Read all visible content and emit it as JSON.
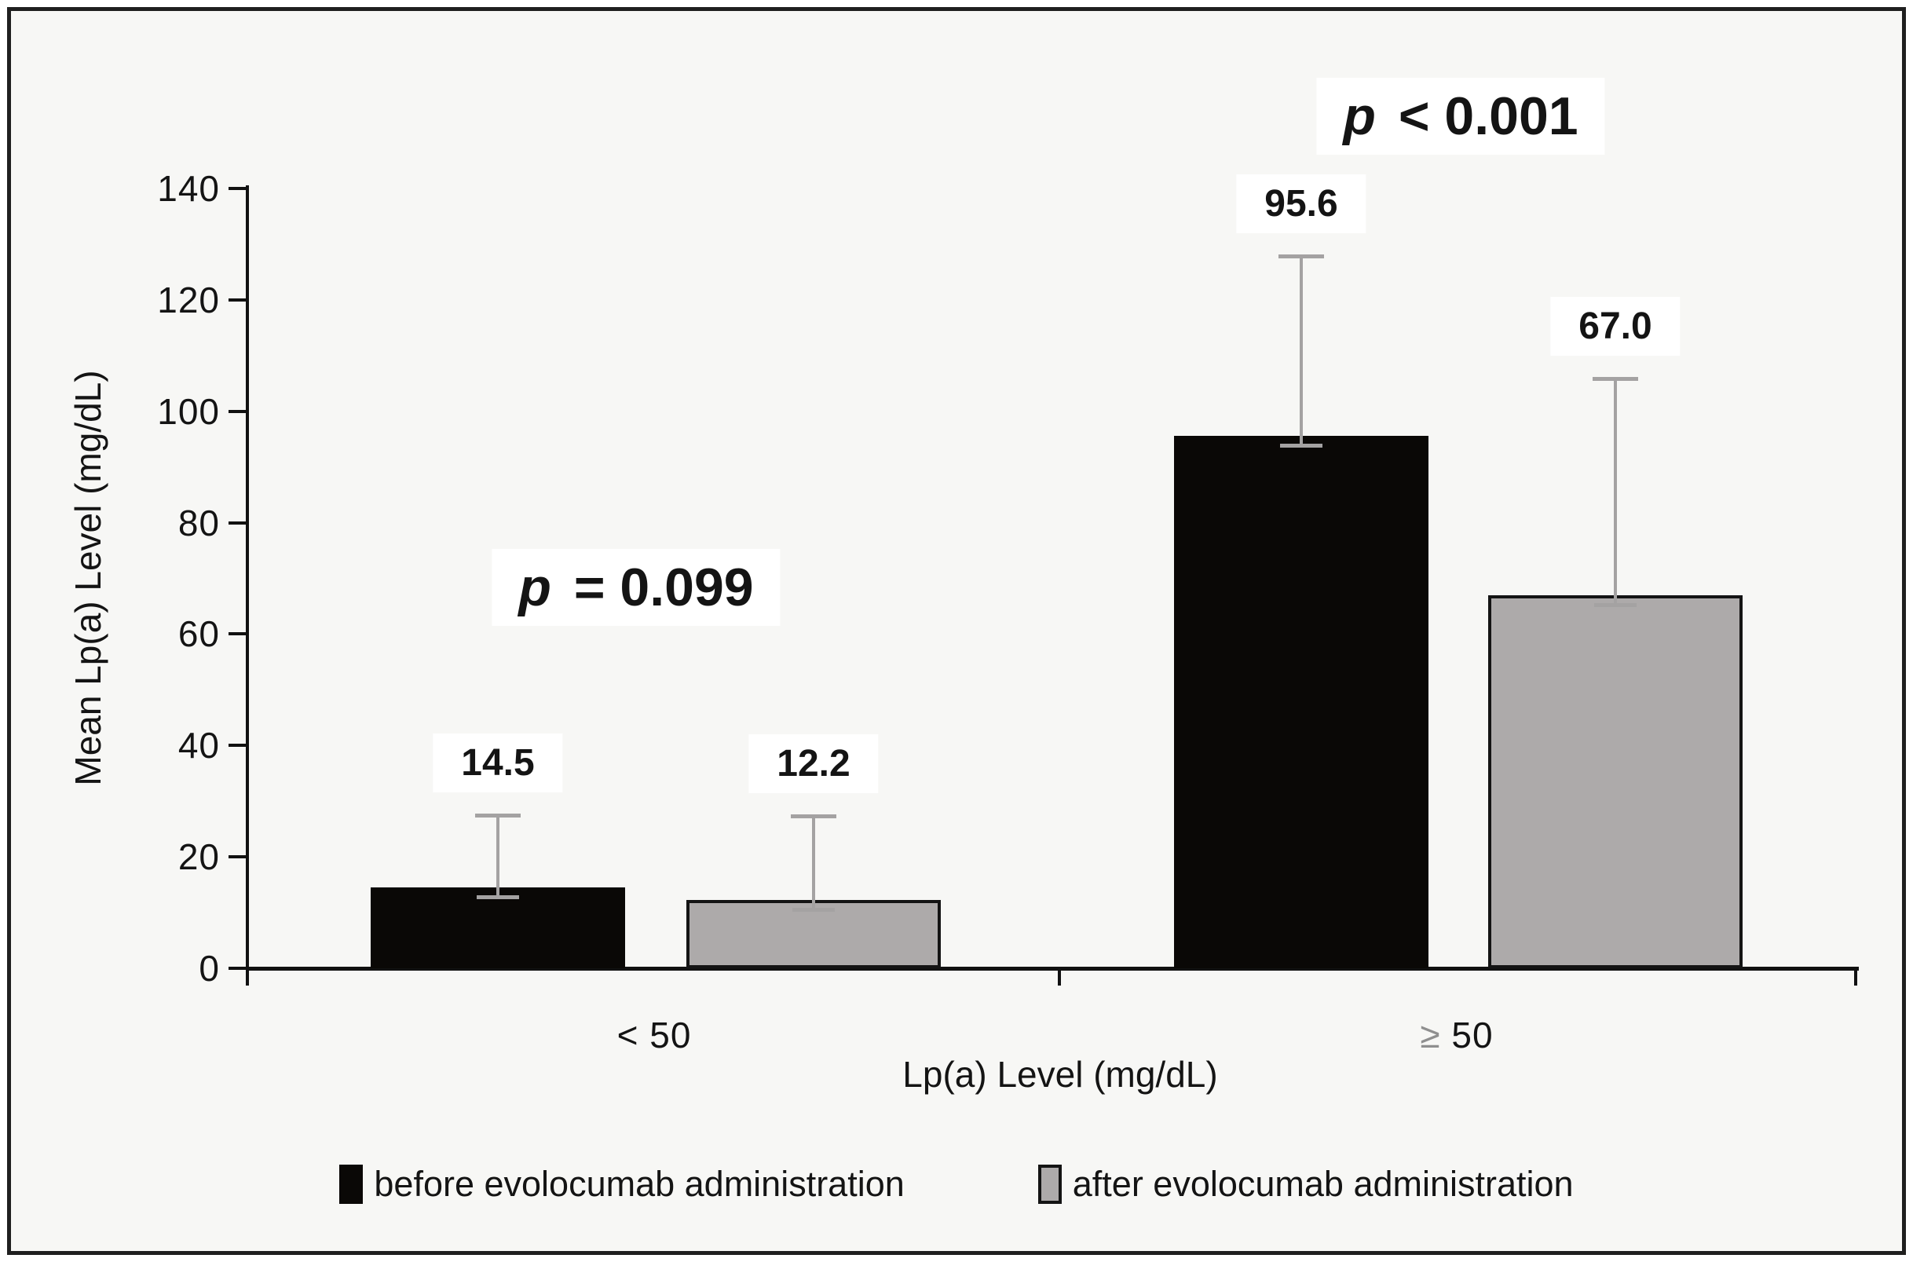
{
  "figure": {
    "background": "#f7f7f5",
    "border_color": "#1f1f1f"
  },
  "chart_data": {
    "type": "bar",
    "title": "",
    "xlabel": "Lp(a) Level (mg/dL)",
    "ylabel": "Mean Lp(a) Level (mg/dL)",
    "categories": [
      "< 50",
      "≥ 50"
    ],
    "series": [
      {
        "name": "before evolocumab administration",
        "color": "#0a0806",
        "values": [
          14.5,
          95.6
        ],
        "error_top": [
          27.6,
          128.0
        ]
      },
      {
        "name": "after evolocumab administration",
        "color": "#adaaaa",
        "border_color": "#141414",
        "values": [
          12.2,
          67.0
        ],
        "error_top": [
          27.5,
          106.0
        ]
      }
    ],
    "value_label_format": "one_decimal",
    "ylim": [
      0,
      140
    ],
    "yticks": [
      0,
      20,
      40,
      60,
      80,
      100,
      120,
      140
    ],
    "grid": false,
    "legend_position": "bottom",
    "error_bar_color": "#a4a2a2",
    "annotations": [
      {
        "text": "p = 0.099",
        "x": 810,
        "y": 748
      },
      {
        "text": "p < 0.001",
        "x": 1860,
        "y": 148
      }
    ]
  }
}
